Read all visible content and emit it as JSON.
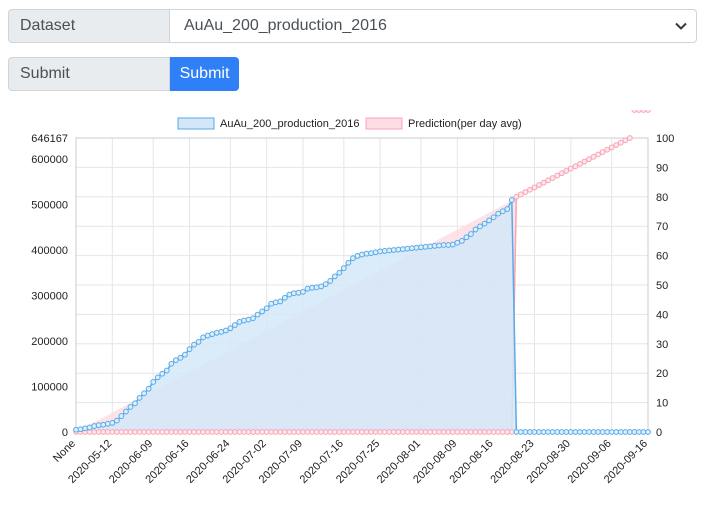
{
  "form": {
    "dataset_label": "Dataset",
    "dataset_selected": "AuAu_200_production_2016",
    "submit_label": "Submit",
    "submit_button": "Submit"
  },
  "colors": {
    "series1_fill": "#d4e7f8",
    "series1_line": "#5aa9e6",
    "series2_fill": "#fddde3",
    "series2_line": "#f9a3b3",
    "button": "#2f80f7"
  },
  "chart_data": {
    "type": "line",
    "legend_position": "top",
    "grid": true,
    "x_tick_labels": [
      "None",
      "2020-05-12",
      "2020-06-09",
      "2020-06-16",
      "2020-06-24",
      "2020-07-02",
      "2020-07-09",
      "2020-07-16",
      "2020-07-25",
      "2020-08-01",
      "2020-08-09",
      "2020-08-16",
      "2020-08-23",
      "2020-08-30",
      "2020-09-06",
      "2020-09-16"
    ],
    "ylim_left": [
      0,
      646167
    ],
    "y_left_ticks": [
      0,
      100000,
      200000,
      300000,
      400000,
      500000,
      600000,
      646167
    ],
    "ylim_right": [
      0,
      100
    ],
    "y_right_ticks": [
      0,
      10,
      20,
      30,
      40,
      50,
      60,
      70,
      80,
      90,
      100
    ],
    "series": [
      {
        "name": "AuAu_200_production_2016",
        "axis": "left",
        "values": [
          5000,
          6000,
          8000,
          10000,
          13000,
          15000,
          16000,
          18000,
          20000,
          25000,
          35000,
          45000,
          55000,
          63000,
          75000,
          85000,
          95000,
          110000,
          120000,
          128000,
          135000,
          150000,
          158000,
          163000,
          170000,
          182000,
          192000,
          198000,
          208000,
          212000,
          215000,
          218000,
          220000,
          223000,
          228000,
          235000,
          242000,
          245000,
          247000,
          250000,
          258000,
          265000,
          272000,
          282000,
          285000,
          287000,
          295000,
          302000,
          305000,
          306000,
          308000,
          315000,
          317000,
          318000,
          320000,
          325000,
          332000,
          342000,
          350000,
          360000,
          372000,
          382000,
          387000,
          390000,
          392000,
          393000,
          395000,
          397000,
          398000,
          399000,
          400000,
          401000,
          402000,
          403000,
          404000,
          405000,
          406000,
          407000,
          408000,
          409000,
          410000,
          411000,
          411000,
          412000,
          416000,
          420000,
          428000,
          435000,
          445000,
          452000,
          458000,
          465000,
          472000,
          480000,
          485000,
          490000,
          510000,
          0,
          0,
          0,
          0,
          0,
          0,
          0,
          0,
          0,
          0,
          0,
          0,
          0,
          0,
          0,
          0,
          0,
          0,
          0,
          0,
          0,
          0,
          0,
          0,
          0,
          0,
          0,
          0,
          0,
          0
        ]
      },
      {
        "name": "Prediction(per day avg)",
        "axis": "right",
        "values": [
          0,
          0,
          0,
          0,
          0,
          0,
          0,
          0,
          0,
          0,
          0,
          0,
          0,
          0,
          0,
          0,
          0,
          0,
          0,
          0,
          0,
          0,
          0,
          0,
          0,
          0,
          0,
          0,
          0,
          0,
          0,
          0,
          0,
          0,
          0,
          0,
          0,
          0,
          0,
          0,
          0,
          0,
          0,
          0,
          0,
          0,
          0,
          0,
          0,
          0,
          0,
          0,
          0,
          0,
          0,
          0,
          0,
          0,
          0,
          0,
          0,
          0,
          0,
          0,
          0,
          0,
          0,
          0,
          0,
          0,
          0,
          0,
          0,
          0,
          0,
          0,
          0,
          0,
          0,
          0,
          0,
          0,
          0,
          0,
          0,
          0,
          0,
          0,
          0,
          0,
          0,
          0,
          0,
          0,
          0,
          0,
          0,
          80,
          80.8,
          81.6,
          82.4,
          83.2,
          84.0,
          84.8,
          85.6,
          86.4,
          87.2,
          88.0,
          88.8,
          89.6,
          90.4,
          91.2,
          92.0,
          92.8,
          93.6,
          94.4,
          95.2,
          96.0,
          96.8,
          97.6,
          98.4,
          99.2,
          100
        ]
      }
    ]
  }
}
